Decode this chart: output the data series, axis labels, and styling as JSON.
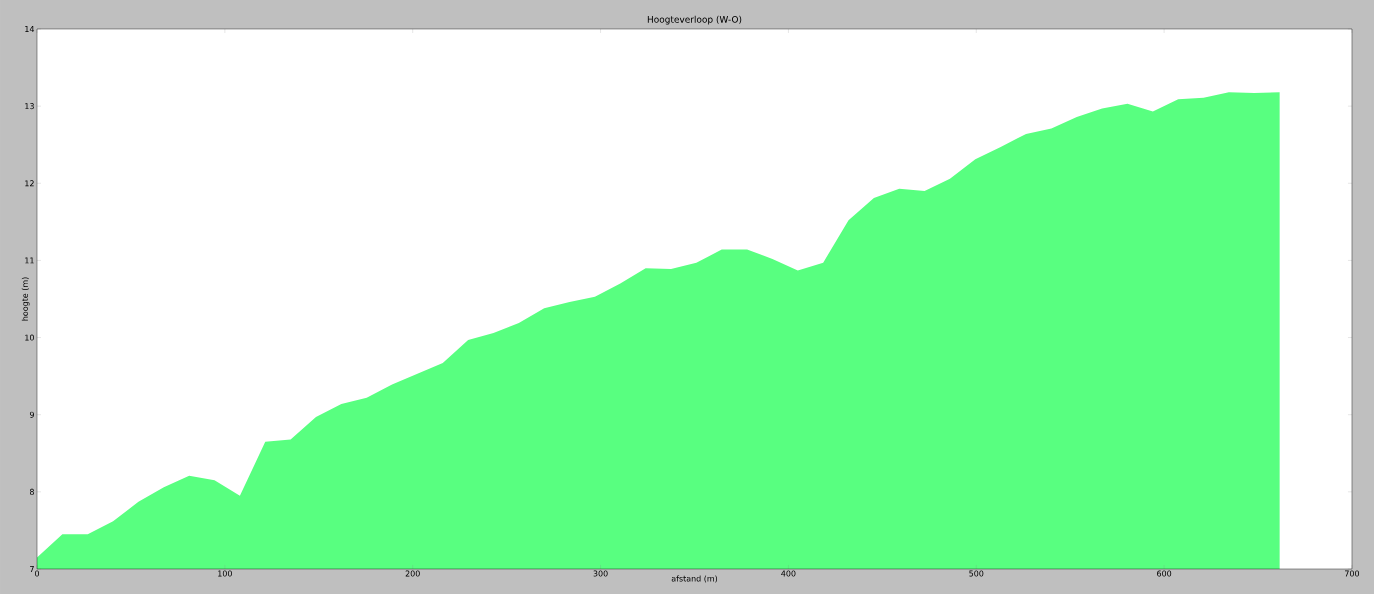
{
  "chart_data": {
    "type": "area",
    "title": "Hoogteverloop (W-O)",
    "xlabel": "afstand (m)",
    "ylabel": "hoogte (m)",
    "x": [
      0,
      13.5,
      27,
      40.5,
      54,
      67.5,
      81,
      94.5,
      108,
      121.5,
      135,
      148.5,
      162,
      175.5,
      189,
      202.5,
      216,
      229.5,
      243,
      256.5,
      270,
      283.5,
      297,
      310.5,
      324,
      337.5,
      351,
      364.5,
      378,
      391.5,
      405,
      418.5,
      432,
      445.5,
      459,
      472.5,
      486,
      499.5,
      513,
      526.5,
      540,
      553.5,
      567,
      580.5,
      594,
      607.5,
      621,
      634.5,
      648,
      661.5
    ],
    "values": [
      7.15,
      7.45,
      7.45,
      7.62,
      7.87,
      8.06,
      8.21,
      8.15,
      7.95,
      8.65,
      8.68,
      8.97,
      9.14,
      9.22,
      9.39,
      9.53,
      9.67,
      9.97,
      10.06,
      10.19,
      10.38,
      10.46,
      10.53,
      10.7,
      10.9,
      10.89,
      10.97,
      11.14,
      11.14,
      11.02,
      10.87,
      10.97,
      11.52,
      11.81,
      11.93,
      11.9,
      12.06,
      12.31,
      12.47,
      12.64,
      12.71,
      12.86,
      12.97,
      13.03,
      12.93,
      13.09,
      13.11,
      13.18,
      13.17,
      13.18
    ],
    "color": "#58ff80",
    "xlim": [
      0,
      700
    ],
    "ylim": [
      7,
      14
    ],
    "xticks": [
      0,
      100,
      200,
      300,
      400,
      500,
      600,
      700
    ],
    "yticks": [
      7,
      8,
      9,
      10,
      11,
      12,
      13,
      14
    ]
  }
}
